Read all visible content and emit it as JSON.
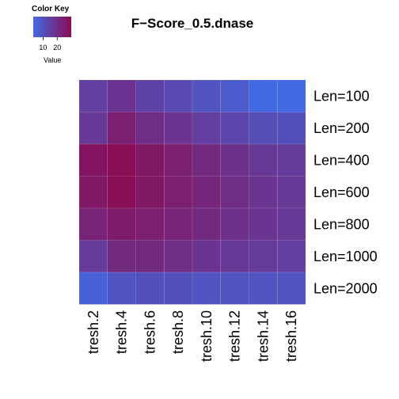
{
  "chart_data": {
    "type": "heatmap",
    "title": "F−Score_0.5.dnase",
    "columns": [
      "tresh.2",
      "tresh.4",
      "tresh.6",
      "tresh.8",
      "tresh.10",
      "tresh.12",
      "tresh.14",
      "tresh.16"
    ],
    "rows": [
      "Len=100",
      "Len=200",
      "Len=400",
      "Len=600",
      "Len=800",
      "Len=1000",
      "Len=2000"
    ],
    "values": [
      [
        15,
        18,
        14,
        12,
        9,
        7,
        3,
        3
      ],
      [
        17,
        24,
        20,
        18,
        15,
        13,
        11,
        10
      ],
      [
        27,
        29,
        26,
        24,
        21,
        19,
        17,
        16
      ],
      [
        26,
        29,
        26,
        24,
        22,
        20,
        18,
        17
      ],
      [
        23,
        25,
        24,
        23,
        21,
        19,
        18,
        17
      ],
      [
        16,
        21,
        21,
        20,
        18,
        17,
        16,
        15
      ],
      [
        5,
        9,
        10,
        10,
        9,
        9,
        9,
        9
      ]
    ],
    "color_scale": {
      "low": "#4169E1",
      "high": "#8B0A50",
      "range": [
        3,
        30
      ]
    },
    "color_key": {
      "title": "Color Key",
      "xlabel": "Value",
      "ticks": [
        "10",
        "20"
      ],
      "tick_values": [
        10,
        20
      ]
    },
    "grid": true,
    "legend_position": "top-left"
  }
}
